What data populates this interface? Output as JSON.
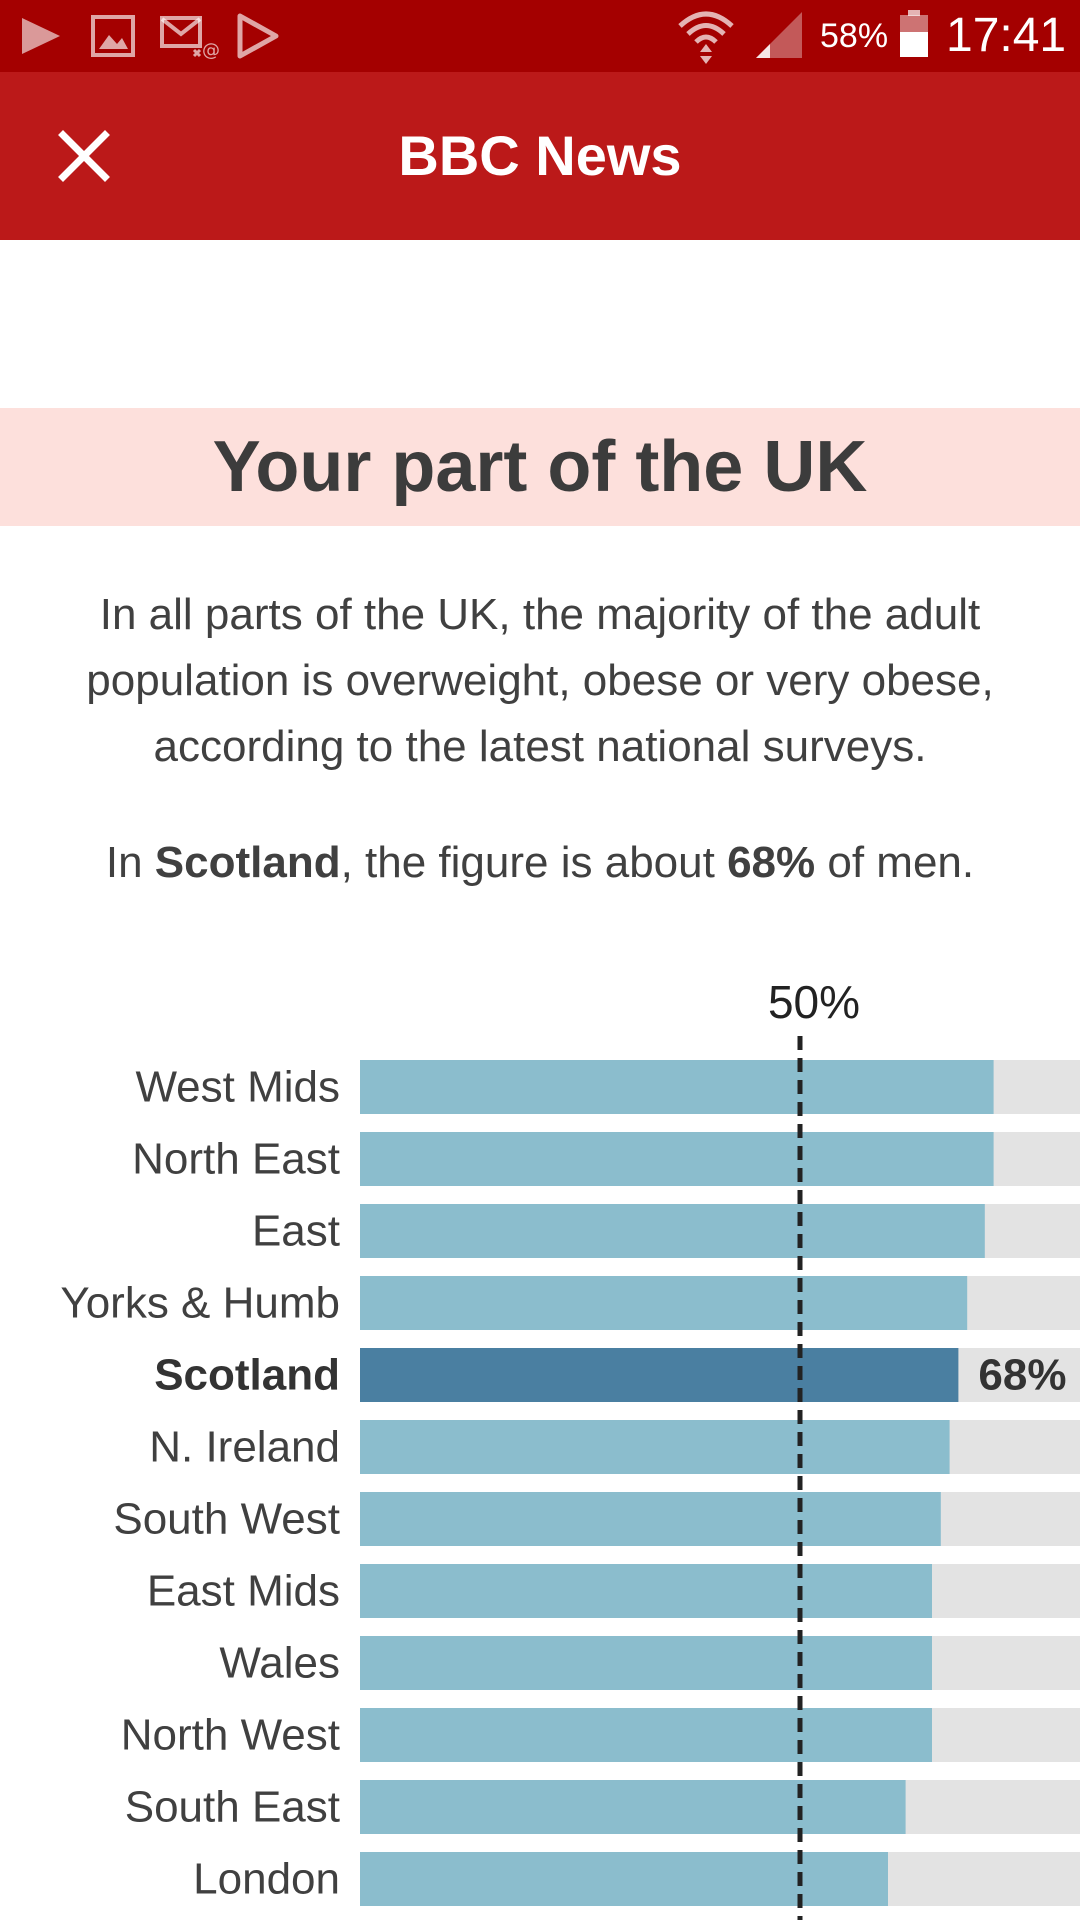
{
  "status_bar": {
    "battery": "58%",
    "time": "17:41",
    "colors": {
      "background": "#a40000"
    },
    "icons": [
      "play-store-icon",
      "gallery-icon",
      "email-icon",
      "play-arrow-icon",
      "wifi-icon",
      "cell-signal-icon",
      "battery-icon"
    ]
  },
  "app_bar": {
    "title": "BBC News",
    "close_icon": "close-icon",
    "colors": {
      "background": "#bb1919"
    }
  },
  "section": {
    "title": "Your part of the UK",
    "intro": "In all parts of the UK, the majority of the adult population is overweight, obese or very obese, according to the latest national surveys.",
    "highlight": {
      "prefix": "In ",
      "region": "Scotland",
      "middle": ", the figure is about ",
      "value": "68%",
      "suffix": " of men."
    },
    "colors": {
      "header_background": "#fde0dc"
    }
  },
  "chart_data": {
    "type": "bar",
    "orientation": "horizontal",
    "categories": [
      "West Mids",
      "North East",
      "East",
      "Yorks & Humb",
      "Scotland",
      "N. Ireland",
      "South West",
      "East Mids",
      "Wales",
      "North West",
      "South East",
      "London"
    ],
    "values": [
      72,
      72,
      71,
      69,
      68,
      67,
      66,
      65,
      65,
      65,
      62,
      60
    ],
    "xlim": [
      0,
      100
    ],
    "highlight_category": "Scotland",
    "highlight_label": "68%",
    "reference_line": {
      "value": 50,
      "label": "50%"
    },
    "colors": {
      "bar": "#8bbdcd",
      "highlight_bar": "#4a7fa1",
      "track": "#e3e3e3",
      "reference_line": "#222222"
    }
  }
}
